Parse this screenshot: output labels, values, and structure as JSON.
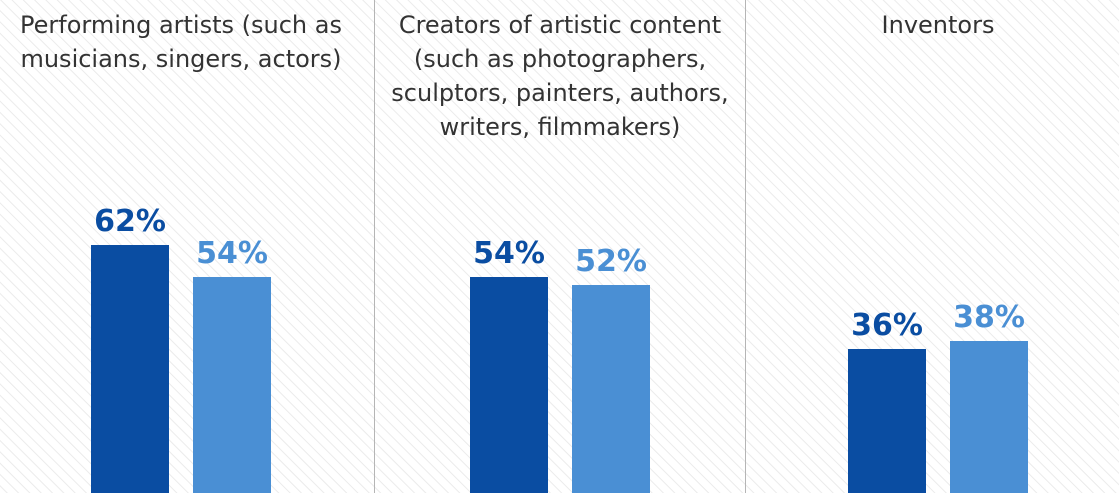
{
  "chart_data": {
    "type": "bar",
    "categories": [
      "Performing artists (such as musicians, singers, actors)",
      "Creators of artistic content (such as photographers, sculptors, painters, authors, writers, filmmakers)",
      "Inventors"
    ],
    "panel_titles": [
      [
        "Performing artists (such as",
        "musicians, singers, actors)"
      ],
      [
        "Creators of artistic content",
        "(such as photographers,",
        "sculptors, painters, authors,",
        "writers, filmmakers)"
      ],
      [
        "Inventors"
      ]
    ],
    "series": [
      {
        "values": [
          62,
          54,
          36
        ],
        "labels": [
          "62%",
          "54%",
          "36%"
        ],
        "color": "#0a4da2"
      },
      {
        "values": [
          54,
          52,
          38
        ],
        "labels": [
          "54%",
          "52%",
          "38%"
        ],
        "color": "#4a8fd4"
      }
    ],
    "ylim": [
      0,
      100
    ],
    "grid": false,
    "legend": "none"
  }
}
